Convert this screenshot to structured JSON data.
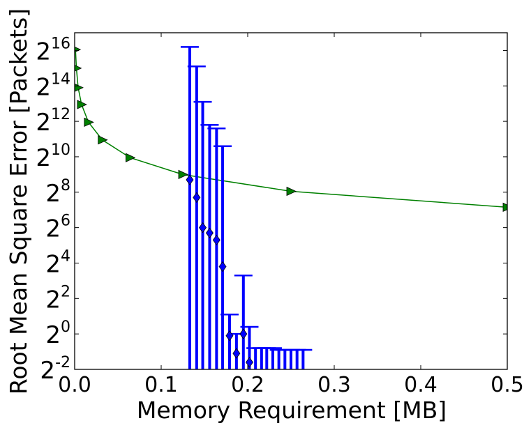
{
  "chart_data": {
    "type": "scatter",
    "xlabel": "Memory Requirement [MB]",
    "ylabel": "Root Mean Square Error [Packets]",
    "xlim": [
      0.0,
      0.5
    ],
    "ylim_log2": [
      -2,
      17
    ],
    "y_scale": "log2",
    "grid": false,
    "x_ticks": [
      "0.0",
      "0.1",
      "0.2",
      "0.3",
      "0.4",
      "0.5"
    ],
    "y_ticks": [
      {
        "base": "2",
        "exp": "-2",
        "value": -2
      },
      {
        "base": "2",
        "exp": "0",
        "value": 0
      },
      {
        "base": "2",
        "exp": "2",
        "value": 2
      },
      {
        "base": "2",
        "exp": "4",
        "value": 4
      },
      {
        "base": "2",
        "exp": "6",
        "value": 6
      },
      {
        "base": "2",
        "exp": "8",
        "value": 8
      },
      {
        "base": "2",
        "exp": "10",
        "value": 10
      },
      {
        "base": "2",
        "exp": "12",
        "value": 12
      },
      {
        "base": "2",
        "exp": "14",
        "value": 14
      },
      {
        "base": "2",
        "exp": "16",
        "value": 16
      }
    ],
    "series": [
      {
        "marker": "triangle-right",
        "color": "#008000",
        "line": true,
        "points": [
          {
            "x": 0.001,
            "y": 16.05
          },
          {
            "x": 0.002,
            "y": 15.0
          },
          {
            "x": 0.004,
            "y": 13.9
          },
          {
            "x": 0.008,
            "y": 12.95
          },
          {
            "x": 0.016,
            "y": 11.95
          },
          {
            "x": 0.032,
            "y": 10.95
          },
          {
            "x": 0.064,
            "y": 9.95
          },
          {
            "x": 0.125,
            "y": 9.0
          },
          {
            "x": 0.25,
            "y": 8.05
          },
          {
            "x": 0.5,
            "y": 7.15
          }
        ]
      },
      {
        "marker": "diamond",
        "color": "#0000ff",
        "error_bars": true,
        "points": [
          {
            "x": 0.133,
            "y": 8.7,
            "upper": 16.2
          },
          {
            "x": 0.141,
            "y": 7.7,
            "upper": 15.1
          },
          {
            "x": 0.148,
            "y": 6.0,
            "upper": 13.1
          },
          {
            "x": 0.156,
            "y": 5.7,
            "upper": 11.8
          },
          {
            "x": 0.164,
            "y": 5.3,
            "upper": 11.6
          },
          {
            "x": 0.171,
            "y": 3.8,
            "upper": 10.6
          },
          {
            "x": 0.179,
            "y": -0.1,
            "upper": 1.1
          },
          {
            "x": 0.187,
            "y": -1.1,
            "upper": 0.0
          },
          {
            "x": 0.195,
            "y": 0.0,
            "upper": 3.3
          },
          {
            "x": 0.202,
            "y": -1.6,
            "upper": 0.4
          },
          {
            "x": 0.209,
            "y": -2.4,
            "upper": -0.8
          },
          {
            "x": 0.216,
            "y": -2.4,
            "upper": -0.8
          },
          {
            "x": 0.222,
            "y": -2.4,
            "upper": -0.8
          },
          {
            "x": 0.229,
            "y": -2.4,
            "upper": -0.8
          },
          {
            "x": 0.236,
            "y": -2.4,
            "upper": -0.9
          },
          {
            "x": 0.243,
            "y": -2.4,
            "upper": -0.9
          },
          {
            "x": 0.25,
            "y": -2.4,
            "upper": -0.9
          },
          {
            "x": 0.257,
            "y": -2.4,
            "upper": -0.9
          },
          {
            "x": 0.264,
            "y": -2.4,
            "upper": -0.9
          }
        ]
      }
    ]
  }
}
